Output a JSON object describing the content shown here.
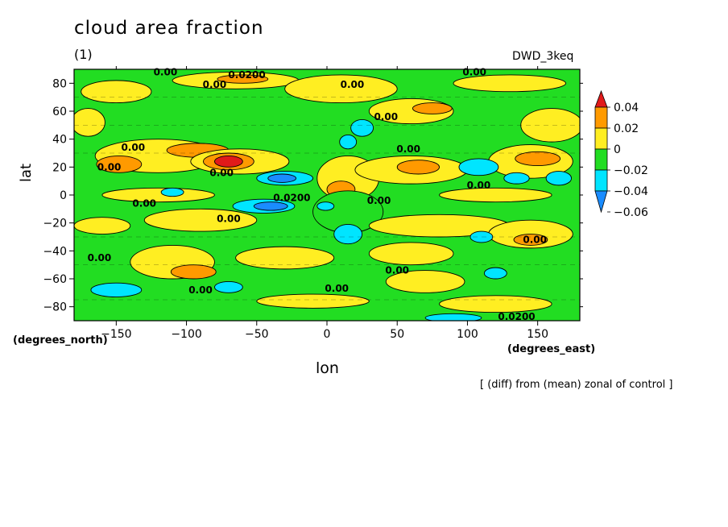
{
  "chart_data": {
    "type": "heatmap",
    "title": "cloud area fraction",
    "panel_label": "(1)",
    "dataset": "DWD_3keq",
    "xlabel": "lon",
    "ylabel": "lat",
    "x_units": "(degrees_east)",
    "y_units": "(degrees_north)",
    "xlim": [
      -180,
      180
    ],
    "ylim": [
      -90,
      90
    ],
    "xticks": [
      -150,
      -100,
      -50,
      0,
      50,
      100,
      150
    ],
    "yticks": [
      -80,
      -60,
      -40,
      -20,
      0,
      20,
      40,
      60,
      80
    ],
    "note": "[ (diff) from (mean) zonal of control ]",
    "colorbar": {
      "levels": [
        -0.06,
        -0.04,
        -0.02,
        0,
        0.02,
        0.04
      ],
      "labels": [
        "0.04",
        "0.02",
        "0",
        "−0.02",
        "−0.04",
        "−0.06"
      ],
      "colors": [
        "#e11a1a",
        "#ff9a00",
        "#ffee22",
        "#22dd22",
        "#00e5ff",
        "#1a8cff"
      ],
      "bands": [
        {
          "range": "> 0.04",
          "color": "#e11a1a"
        },
        {
          "range": "0.02 to 0.04",
          "color": "#ff9a00"
        },
        {
          "range": "0 to 0.02",
          "color": "#ffee22"
        },
        {
          "range": "-0.02 to 0",
          "color": "#22dd22"
        },
        {
          "range": "-0.04 to -0.02",
          "color": "#00e5ff"
        },
        {
          "range": "-0.06 to -0.04",
          "color": "#1a8cff"
        }
      ]
    },
    "contour_labels": [
      {
        "text": "0.00",
        "lon": -115,
        "lat": 88
      },
      {
        "text": "0.00",
        "lon": -80,
        "lat": 79
      },
      {
        "text": "0.0200",
        "lon": -57,
        "lat": 86
      },
      {
        "text": "0.00",
        "lon": 18,
        "lat": 79
      },
      {
        "text": "0.00",
        "lon": 105,
        "lat": 88
      },
      {
        "text": "0.00",
        "lon": 42,
        "lat": 56
      },
      {
        "text": "0.00",
        "lon": 58,
        "lat": 33
      },
      {
        "text": "0.00",
        "lon": -138,
        "lat": 34
      },
      {
        "text": "0.00",
        "lon": -155,
        "lat": 20
      },
      {
        "text": "0.00",
        "lon": -75,
        "lat": 16
      },
      {
        "text": "0.0200",
        "lon": -25,
        "lat": -2
      },
      {
        "text": "0.00",
        "lon": 37,
        "lat": -4
      },
      {
        "text": "0.00",
        "lon": -130,
        "lat": -6
      },
      {
        "text": "0.00",
        "lon": -70,
        "lat": -17
      },
      {
        "text": "0.00",
        "lon": 108,
        "lat": 7
      },
      {
        "text": "0.00",
        "lon": -162,
        "lat": -45
      },
      {
        "text": "0.00",
        "lon": 50,
        "lat": -54
      },
      {
        "text": "0.00",
        "lon": -90,
        "lat": -68
      },
      {
        "text": "0.00",
        "lon": 7,
        "lat": -67
      },
      {
        "text": "0.00",
        "lon": 148,
        "lat": -32
      },
      {
        "text": "0.0200",
        "lon": 135,
        "lat": -87
      }
    ],
    "field_regions": [
      {
        "value": 0.01,
        "lon": -150,
        "lat": 74,
        "rlon": 25,
        "rlat": 8
      },
      {
        "value": 0.01,
        "lon": -65,
        "lat": 82,
        "rlon": 45,
        "rlat": 6
      },
      {
        "value": 0.03,
        "lon": -60,
        "lat": 83,
        "rlon": 18,
        "rlat": 3
      },
      {
        "value": 0.01,
        "lon": 10,
        "lat": 76,
        "rlon": 40,
        "rlat": 10
      },
      {
        "value": 0.01,
        "lon": 130,
        "lat": 80,
        "rlon": 40,
        "rlat": 6
      },
      {
        "value": 0.01,
        "lon": 60,
        "lat": 60,
        "rlon": 30,
        "rlat": 9
      },
      {
        "value": 0.03,
        "lon": 75,
        "lat": 62,
        "rlon": 14,
        "rlat": 4
      },
      {
        "value": 0.01,
        "lon": -170,
        "lat": 52,
        "rlon": 12,
        "rlat": 10
      },
      {
        "value": 0.01,
        "lon": 160,
        "lat": 50,
        "rlon": 22,
        "rlat": 12
      },
      {
        "value": 0.01,
        "lon": -120,
        "lat": 28,
        "rlon": 45,
        "rlat": 12
      },
      {
        "value": 0.03,
        "lon": -148,
        "lat": 22,
        "rlon": 16,
        "rlat": 6
      },
      {
        "value": 0.03,
        "lon": -92,
        "lat": 32,
        "rlon": 22,
        "rlat": 5
      },
      {
        "value": 0.01,
        "lon": -62,
        "lat": 24,
        "rlon": 35,
        "rlat": 9
      },
      {
        "value": 0.03,
        "lon": -70,
        "lat": 24,
        "rlon": 18,
        "rlat": 6
      },
      {
        "value": 0.05,
        "lon": -70,
        "lat": 24,
        "rlon": 10,
        "rlat": 4
      },
      {
        "value": 0.01,
        "lon": 15,
        "lat": 12,
        "rlon": 22,
        "rlat": 16
      },
      {
        "value": 0.03,
        "lon": 10,
        "lat": 4,
        "rlon": 10,
        "rlat": 6
      },
      {
        "value": 0.01,
        "lon": 60,
        "lat": 18,
        "rlon": 40,
        "rlat": 10
      },
      {
        "value": 0.03,
        "lon": 65,
        "lat": 20,
        "rlon": 15,
        "rlat": 5
      },
      {
        "value": 0.01,
        "lon": 145,
        "lat": 24,
        "rlon": 30,
        "rlat": 12
      },
      {
        "value": 0.03,
        "lon": 150,
        "lat": 26,
        "rlon": 16,
        "rlat": 5
      },
      {
        "value": -0.01,
        "lon": 15,
        "lat": -12,
        "rlon": 25,
        "rlat": 15
      },
      {
        "value": 0.01,
        "lon": -120,
        "lat": 0,
        "rlon": 40,
        "rlat": 5
      },
      {
        "value": 0.01,
        "lon": 120,
        "lat": 0,
        "rlon": 40,
        "rlat": 5
      },
      {
        "value": 0.01,
        "lon": -90,
        "lat": -18,
        "rlon": 40,
        "rlat": 8
      },
      {
        "value": 0.01,
        "lon": -160,
        "lat": -22,
        "rlon": 20,
        "rlat": 6
      },
      {
        "value": 0.01,
        "lon": 80,
        "lat": -22,
        "rlon": 50,
        "rlat": 8
      },
      {
        "value": 0.01,
        "lon": 145,
        "lat": -28,
        "rlon": 30,
        "rlat": 10
      },
      {
        "value": 0.03,
        "lon": 145,
        "lat": -32,
        "rlon": 12,
        "rlat": 4
      },
      {
        "value": 0.01,
        "lon": -110,
        "lat": -48,
        "rlon": 30,
        "rlat": 12
      },
      {
        "value": 0.01,
        "lon": -30,
        "lat": -45,
        "rlon": 35,
        "rlat": 8
      },
      {
        "value": 0.01,
        "lon": 60,
        "lat": -42,
        "rlon": 30,
        "rlat": 8
      },
      {
        "value": 0.03,
        "lon": -95,
        "lat": -55,
        "rlon": 16,
        "rlat": 5
      },
      {
        "value": 0.01,
        "lon": 70,
        "lat": -62,
        "rlon": 28,
        "rlat": 8
      },
      {
        "value": 0.01,
        "lon": -10,
        "lat": -76,
        "rlon": 40,
        "rlat": 5
      },
      {
        "value": 0.01,
        "lon": 120,
        "lat": -78,
        "rlon": 40,
        "rlat": 6
      },
      {
        "value": -0.03,
        "lon": -30,
        "lat": 12,
        "rlon": 20,
        "rlat": 5
      },
      {
        "value": -0.05,
        "lon": -32,
        "lat": 12,
        "rlon": 10,
        "rlat": 3
      },
      {
        "value": -0.03,
        "lon": -45,
        "lat": -8,
        "rlon": 22,
        "rlat": 5
      },
      {
        "value": -0.05,
        "lon": -40,
        "lat": -8,
        "rlon": 12,
        "rlat": 3
      },
      {
        "value": -0.03,
        "lon": -1,
        "lat": -8,
        "rlon": 6,
        "rlat": 3
      },
      {
        "value": -0.03,
        "lon": 25,
        "lat": 48,
        "rlon": 8,
        "rlat": 6
      },
      {
        "value": -0.03,
        "lon": 15,
        "lat": 38,
        "rlon": 6,
        "rlat": 5
      },
      {
        "value": -0.03,
        "lon": 108,
        "lat": 20,
        "rlon": 14,
        "rlat": 6
      },
      {
        "value": -0.03,
        "lon": 135,
        "lat": 12,
        "rlon": 9,
        "rlat": 4
      },
      {
        "value": -0.03,
        "lon": 165,
        "lat": 12,
        "rlon": 9,
        "rlat": 5
      },
      {
        "value": -0.03,
        "lon": 15,
        "lat": -28,
        "rlon": 10,
        "rlat": 7
      },
      {
        "value": -0.03,
        "lon": -150,
        "lat": -68,
        "rlon": 18,
        "rlat": 5
      },
      {
        "value": -0.03,
        "lon": -70,
        "lat": -66,
        "rlon": 10,
        "rlat": 4
      },
      {
        "value": -0.03,
        "lon": -110,
        "lat": 2,
        "rlon": 8,
        "rlat": 3
      },
      {
        "value": -0.03,
        "lon": 90,
        "lat": -88,
        "rlon": 20,
        "rlat": 3
      },
      {
        "value": -0.03,
        "lon": 110,
        "lat": -30,
        "rlon": 8,
        "rlat": 4
      },
      {
        "value": -0.03,
        "lon": 120,
        "lat": -56,
        "rlon": 8,
        "rlat": 4
      }
    ]
  }
}
